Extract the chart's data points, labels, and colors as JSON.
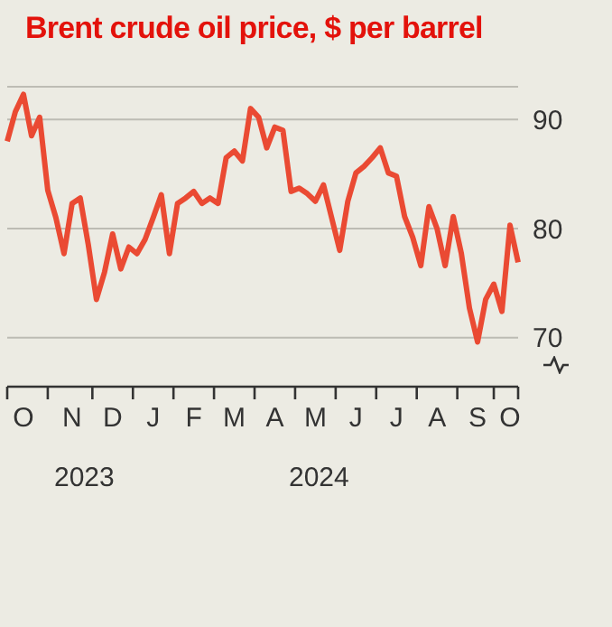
{
  "chart_data": {
    "type": "line",
    "title": "Brent crude oil price, $ per barrel",
    "categories": [
      null,
      null,
      "O",
      null,
      null,
      null,
      null,
      null,
      "N",
      null,
      null,
      null,
      null,
      "D",
      null,
      null,
      null,
      null,
      "J",
      null,
      null,
      null,
      null,
      "F",
      null,
      null,
      null,
      null,
      "M",
      null,
      null,
      null,
      null,
      "A",
      null,
      null,
      null,
      null,
      "M",
      null,
      null,
      null,
      null,
      "J",
      null,
      null,
      null,
      null,
      "J",
      null,
      null,
      null,
      null,
      "A",
      null,
      null,
      null,
      null,
      "S",
      null,
      null,
      null,
      "O",
      null
    ],
    "series": [
      {
        "color": "#ea4a33",
        "values": [
          88.0,
          90.7,
          92.3,
          88.5,
          90.2,
          83.5,
          81.0,
          77.7,
          82.3,
          82.8,
          78.5,
          73.5,
          76.0,
          79.5,
          76.3,
          78.3,
          77.7,
          79.0,
          81.0,
          83.1,
          77.7,
          82.3,
          82.8,
          83.4,
          82.3,
          82.8,
          82.3,
          86.5,
          87.1,
          86.2,
          91.0,
          90.2,
          87.4,
          89.3,
          89.0,
          83.4,
          83.7,
          83.2,
          82.5,
          84.0,
          81.0,
          78.0,
          82.5,
          85.1,
          85.7,
          86.5,
          87.4,
          85.1,
          84.8,
          81.1,
          79.2,
          76.6,
          82.0,
          80.0,
          76.6,
          81.1,
          77.7,
          72.7,
          69.6,
          73.5,
          74.9,
          72.4,
          80.3,
          76.9
        ]
      }
    ],
    "ylim": [
      65.5,
      93
    ],
    "yticks": [
      70,
      80,
      90
    ],
    "grid": "y",
    "annotations": [
      "2023",
      "2024"
    ]
  }
}
